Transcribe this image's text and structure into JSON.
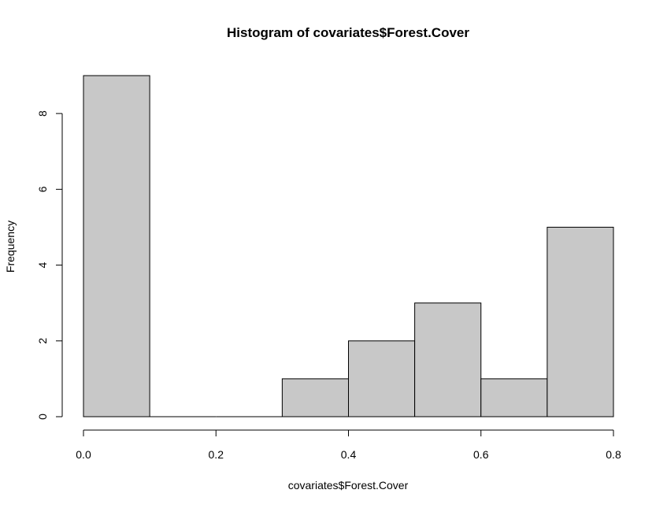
{
  "chart_data": {
    "type": "bar",
    "title": "Histogram of covariates$Forest.Cover",
    "xlabel": "covariates$Forest.Cover",
    "ylabel": "Frequency",
    "bins": [
      {
        "start": 0.0,
        "end": 0.1,
        "count": 9
      },
      {
        "start": 0.1,
        "end": 0.2,
        "count": 0
      },
      {
        "start": 0.2,
        "end": 0.3,
        "count": 0
      },
      {
        "start": 0.3,
        "end": 0.4,
        "count": 1
      },
      {
        "start": 0.4,
        "end": 0.5,
        "count": 2
      },
      {
        "start": 0.5,
        "end": 0.6,
        "count": 3
      },
      {
        "start": 0.6,
        "end": 0.7,
        "count": 1
      },
      {
        "start": 0.7,
        "end": 0.8,
        "count": 5
      }
    ],
    "xlim": [
      0.0,
      0.8
    ],
    "ylim": [
      0,
      9
    ],
    "x_ticks": [
      "0.0",
      "0.2",
      "0.4",
      "0.6",
      "0.8"
    ],
    "y_ticks": [
      "0",
      "2",
      "4",
      "6",
      "8"
    ],
    "grid": false,
    "legend": "none",
    "colors": {
      "bar_fill": "#c8c8c8",
      "bar_stroke": "#000000",
      "axis": "#000000"
    }
  }
}
